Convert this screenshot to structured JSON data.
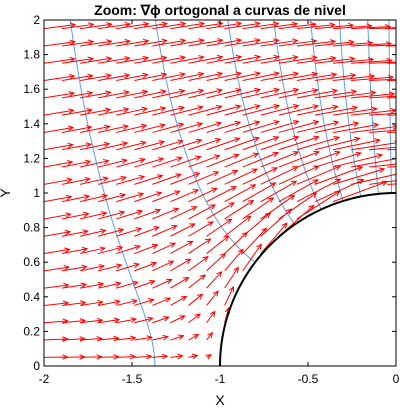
{
  "chart_data": {
    "type": "quiver",
    "title": "Zoom: ∇ϕ ortogonal a curvas de nivel",
    "xlabel": "X",
    "ylabel": "Y",
    "xlim": [
      -2,
      0
    ],
    "ylim": [
      0,
      2
    ],
    "xticks": [
      "-2",
      "-1.5",
      "-1",
      "-0.5",
      "0"
    ],
    "yticks": [
      "0",
      "0.2",
      "0.4",
      "0.6",
      "0.8",
      "1",
      "1.2",
      "1.4",
      "1.6",
      "1.8",
      "2"
    ],
    "grid": false,
    "field": {
      "name": "∇ϕ",
      "color": "#ff0000",
      "description_model": "uniform flow past a unit cylinder, gradient of potential",
      "grid_x_start": -2,
      "grid_x_end": -0.05,
      "grid_x_count": 20,
      "grid_y_start": 0.05,
      "grid_y_end": 1.95,
      "grid_y_count": 20
    },
    "level_curves": {
      "color": "#5aa0e0",
      "phi_values": [
        -2.1,
        -1.6,
        -1.15,
        -0.85,
        -0.6,
        -0.4,
        -0.2,
        -0.05
      ]
    },
    "body_boundary": {
      "color": "#000000",
      "radius": 1,
      "center": [
        0,
        0
      ]
    }
  }
}
